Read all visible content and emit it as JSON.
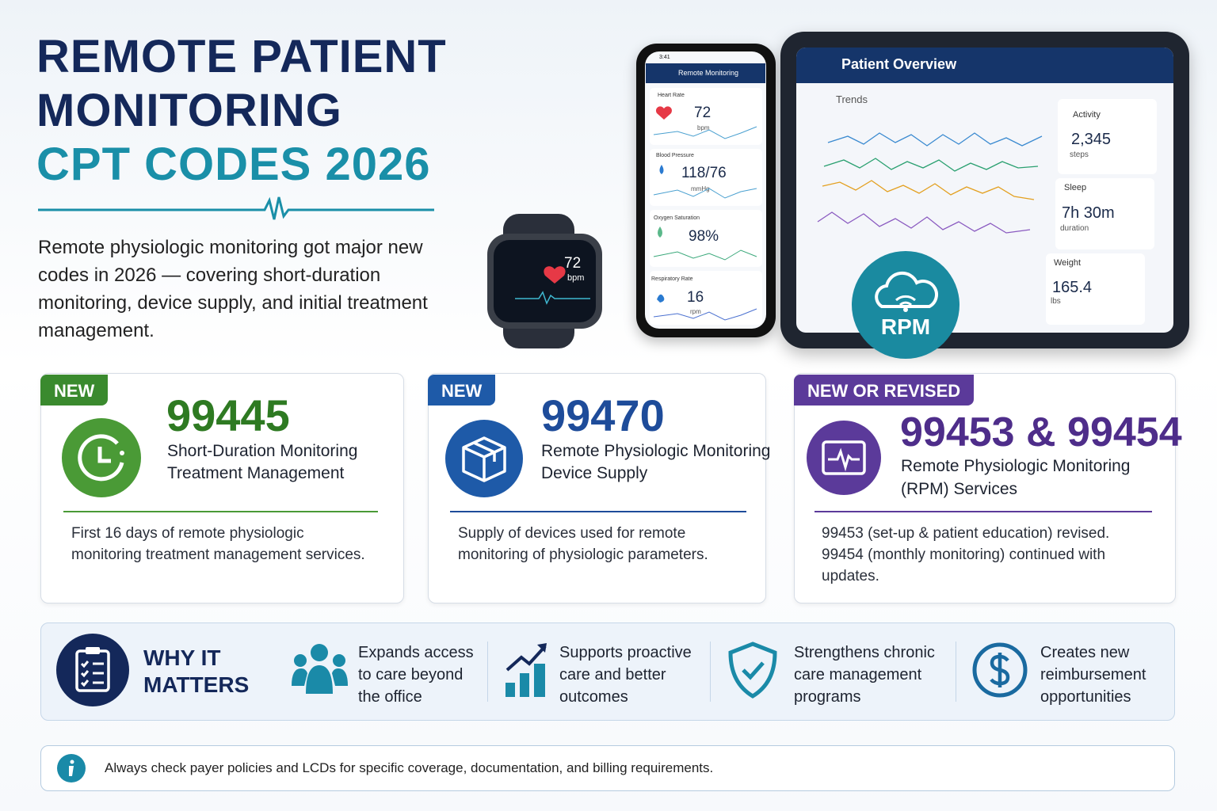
{
  "header": {
    "title_line1": "REMOTE PATIENT",
    "title_line2": "MONITORING",
    "title_line3": "CPT CODES 2026",
    "intro": "Remote physiologic monitoring got major new codes in 2026 — covering short-duration monitoring, device supply, and initial treatment management."
  },
  "devices": {
    "watch": {
      "value": "72",
      "unit": "bpm"
    },
    "phone": {
      "time": "3:41",
      "title": "Remote Monitoring",
      "metrics": [
        {
          "label": "Heart Rate",
          "value": "72",
          "unit": "bpm"
        },
        {
          "label": "Blood Pressure",
          "value": "118/76",
          "unit": "mmHg"
        },
        {
          "label": "Oxygen Saturation",
          "value": "98%"
        },
        {
          "label": "Respiratory Rate",
          "value": "16",
          "unit": "rpm"
        }
      ]
    },
    "tablet": {
      "title": "Patient Overview",
      "trends_label": "Trends",
      "stats": [
        {
          "label": "Activity",
          "value": "2,345",
          "unit": "steps"
        },
        {
          "label": "Sleep",
          "value": "7h 30m",
          "unit": "duration"
        },
        {
          "label": "Weight",
          "value": "165.4",
          "unit": "lbs"
        }
      ]
    },
    "badge": "RPM"
  },
  "cards": [
    {
      "tag": "NEW",
      "code": "99445",
      "title_line1": "Short-Duration Monitoring",
      "title_line2": "Treatment Management",
      "description": "First 16 days of remote physiologic monitoring treatment management services."
    },
    {
      "tag": "NEW",
      "code": "99470",
      "title_line1": "Remote Physiologic Monitoring",
      "title_line2": "Device Supply",
      "description": "Supply of devices used for remote monitoring of physiologic parameters."
    },
    {
      "tag": "NEW OR REVISED",
      "code": "99453 & 99454",
      "title_line1": "Remote Physiologic Monitoring",
      "title_line2": "(RPM) Services",
      "description": "99453 (set-up & patient education) revised. 99454 (monthly monitoring) continued with updates."
    }
  ],
  "why": {
    "title_line1": "WHY IT",
    "title_line2": "MATTERS",
    "items": [
      "Expands access to care beyond the office",
      "Supports proactive care and better outcomes",
      "Strengthens chronic care management programs",
      "Creates new reimbursement opportunities"
    ]
  },
  "note": "Always check payer policies and LCDs for specific coverage, documentation, and billing requirements."
}
